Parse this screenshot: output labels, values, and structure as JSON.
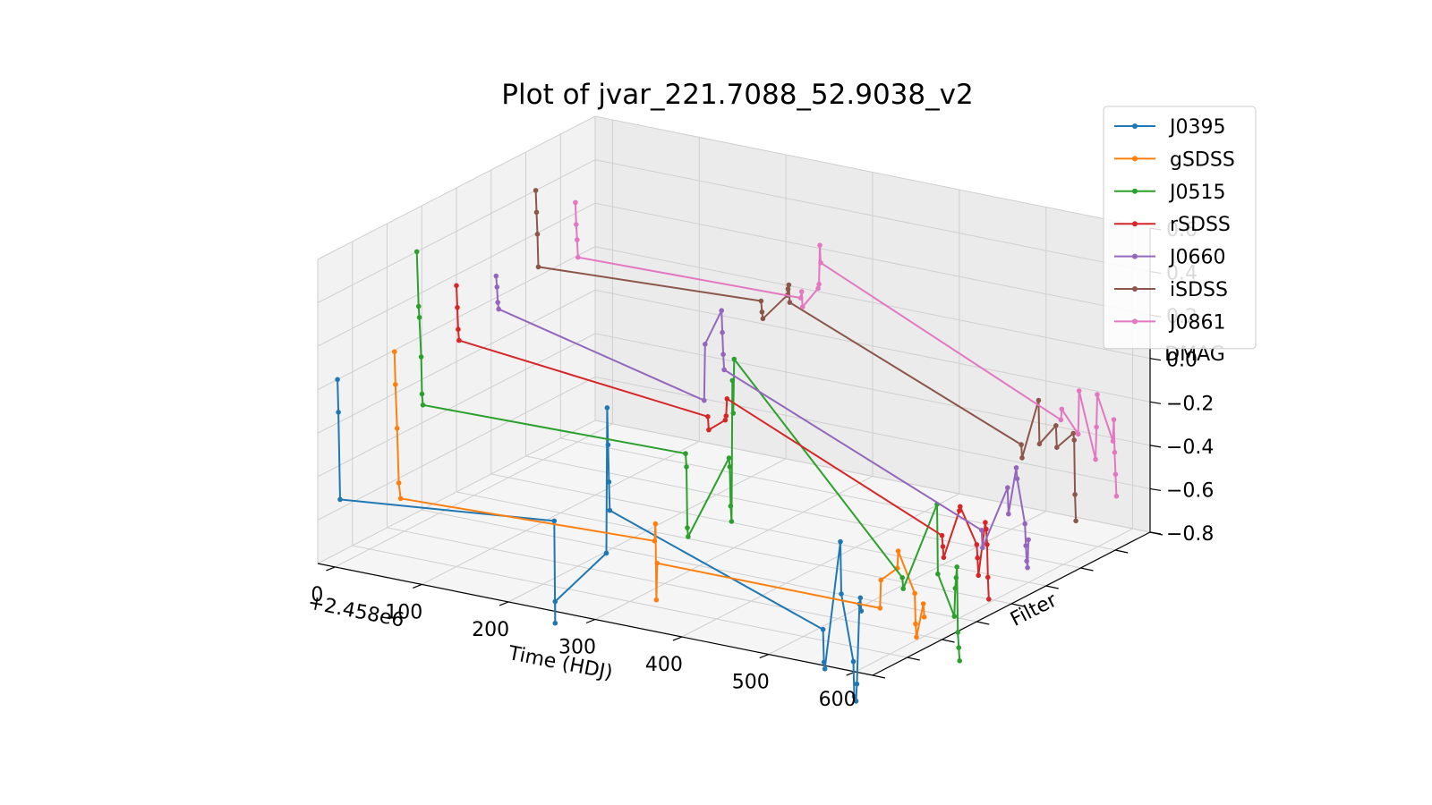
{
  "chart_data": {
    "type": "line",
    "projection": "3d",
    "title": "Plot of jvar_221.7088_52.9038_v2",
    "xlabel": "Time (HDJ)",
    "ylabel": "Filter",
    "zlabel": "DMAG",
    "x_offset_label": "+2.458e6",
    "x_ticks": [
      "0",
      "100",
      "200",
      "300",
      "400",
      "500",
      "600"
    ],
    "z_ticks": [
      "−0.8",
      "−0.6",
      "−0.4",
      "−0.2",
      "0.0",
      "0.2",
      "0.4",
      "0.6"
    ],
    "x_range": [
      -20,
      620
    ],
    "z_range": [
      -0.8,
      0.6
    ],
    "grid": true,
    "legend_position": "top-right",
    "series": [
      {
        "name": "J0395",
        "color": "#1f77b4",
        "filter_index": 0,
        "points": [
          [
            -20,
            0.0
          ],
          [
            -19,
            -0.15
          ],
          [
            -17,
            -0.55
          ],
          [
            230,
            -0.45
          ],
          [
            231,
            -0.92
          ],
          [
            231,
            -0.82
          ],
          [
            290,
            -0.55
          ],
          [
            291,
            0.12
          ],
          [
            292,
            -0.05
          ],
          [
            293,
            -0.22
          ],
          [
            294,
            -0.35
          ],
          [
            540,
            -0.7
          ],
          [
            541,
            -0.85
          ],
          [
            542,
            -0.88
          ],
          [
            560,
            -0.28
          ],
          [
            561,
            -0.52
          ],
          [
            575,
            -0.82
          ],
          [
            576,
            -0.98
          ],
          [
            578,
            -1.0
          ],
          [
            579,
            -0.92
          ],
          [
            582,
            -0.55
          ],
          [
            583,
            -0.52
          ],
          [
            584,
            -0.58
          ]
        ]
      },
      {
        "name": "gSDSS",
        "color": "#ff7f0e",
        "filter_index": 1,
        "points": [
          [
            0,
            0.05
          ],
          [
            1,
            -0.1
          ],
          [
            3,
            -0.3
          ],
          [
            5,
            -0.55
          ],
          [
            7,
            -0.62
          ],
          [
            300,
            -0.58
          ],
          [
            301,
            -0.5
          ],
          [
            302,
            -0.85
          ],
          [
            303,
            -0.68
          ],
          [
            560,
            -0.68
          ],
          [
            561,
            -0.55
          ],
          [
            580,
            -0.48
          ],
          [
            581,
            -0.4
          ],
          [
            600,
            -0.58
          ],
          [
            601,
            -0.72
          ],
          [
            602,
            -0.78
          ],
          [
            610,
            -0.62
          ],
          [
            611,
            -0.68
          ]
        ]
      },
      {
        "name": "J0515",
        "color": "#2ca02c",
        "filter_index": 2,
        "points": [
          [
            -20,
            0.4
          ],
          [
            -18,
            0.15
          ],
          [
            -17,
            0.1
          ],
          [
            -15,
            -0.08
          ],
          [
            -14,
            -0.25
          ],
          [
            -13,
            -0.3
          ],
          [
            290,
            -0.28
          ],
          [
            291,
            -0.34
          ],
          [
            292,
            -0.62
          ],
          [
            293,
            -0.66
          ],
          [
            340,
            -0.26
          ],
          [
            341,
            -0.3
          ],
          [
            342,
            -0.48
          ],
          [
            343,
            -0.55
          ],
          [
            344,
            0.1
          ],
          [
            345,
            -0.05
          ],
          [
            346,
            0.2
          ],
          [
            540,
            -0.65
          ],
          [
            541,
            -0.7
          ],
          [
            580,
            -0.28
          ],
          [
            581,
            -0.6
          ],
          [
            600,
            -0.78
          ],
          [
            601,
            -0.65
          ],
          [
            602,
            -0.6
          ],
          [
            603,
            -0.55
          ],
          [
            604,
            -0.85
          ],
          [
            605,
            -0.92
          ],
          [
            606,
            -0.98
          ]
        ]
      },
      {
        "name": "rSDSS",
        "color": "#d62728",
        "filter_index": 3,
        "points": [
          [
            -20,
            0.15
          ],
          [
            -19,
            0.05
          ],
          [
            -18,
            -0.05
          ],
          [
            -17,
            -0.1
          ],
          [
            270,
            -0.22
          ],
          [
            271,
            -0.28
          ],
          [
            290,
            -0.22
          ],
          [
            291,
            -0.2
          ],
          [
            292,
            -0.12
          ],
          [
            540,
            -0.55
          ],
          [
            541,
            -0.6
          ],
          [
            542,
            -0.65
          ],
          [
            560,
            -0.42
          ],
          [
            561,
            -0.4
          ],
          [
            580,
            -0.56
          ],
          [
            581,
            -0.62
          ],
          [
            582,
            -0.7
          ],
          [
            590,
            -0.45
          ],
          [
            591,
            -0.48
          ],
          [
            592,
            -0.55
          ],
          [
            593,
            -0.7
          ],
          [
            594,
            -0.8
          ]
        ]
      },
      {
        "name": "J0660",
        "color": "#9467bd",
        "filter_index": 4,
        "points": [
          [
            -20,
            0.1
          ],
          [
            -19,
            0.05
          ],
          [
            -18,
            -0.02
          ],
          [
            -17,
            -0.05
          ],
          [
            220,
            -0.28
          ],
          [
            221,
            -0.02
          ],
          [
            240,
            0.15
          ],
          [
            241,
            0.05
          ],
          [
            242,
            -0.05
          ],
          [
            243,
            -0.12
          ],
          [
            540,
            -0.62
          ],
          [
            541,
            -0.7
          ],
          [
            570,
            -0.4
          ],
          [
            571,
            -0.52
          ],
          [
            580,
            -0.3
          ],
          [
            581,
            -0.35
          ],
          [
            590,
            -0.55
          ],
          [
            591,
            -0.65
          ],
          [
            592,
            -0.72
          ],
          [
            593,
            -0.75
          ],
          [
            594,
            -0.62
          ]
        ]
      },
      {
        "name": "iSDSS",
        "color": "#8c564b",
        "filter_index": 5,
        "points": [
          [
            -20,
            0.4
          ],
          [
            -19,
            0.3
          ],
          [
            -18,
            0.2
          ],
          [
            -17,
            0.05
          ],
          [
            240,
            0.1
          ],
          [
            241,
            0.05
          ],
          [
            242,
            0.02
          ],
          [
            270,
            0.15
          ],
          [
            271,
            0.18
          ],
          [
            272,
            0.2
          ],
          [
            273,
            0.12
          ],
          [
            540,
            -0.32
          ],
          [
            541,
            -0.38
          ],
          [
            560,
            -0.1
          ],
          [
            561,
            -0.3
          ],
          [
            580,
            -0.2
          ],
          [
            581,
            -0.3
          ],
          [
            600,
            -0.22
          ],
          [
            601,
            -0.25
          ],
          [
            602,
            -0.5
          ],
          [
            603,
            -0.62
          ]
        ]
      },
      {
        "name": "J0861",
        "color": "#e377c2",
        "filter_index": 6,
        "points": [
          [
            -20,
            0.25
          ],
          [
            -19,
            0.15
          ],
          [
            -18,
            0.08
          ],
          [
            -17,
            0.0
          ],
          [
            240,
            0.02
          ],
          [
            241,
            0.05
          ],
          [
            242,
            -0.02
          ],
          [
            260,
            0.08
          ],
          [
            261,
            0.1
          ],
          [
            262,
            0.28
          ],
          [
            263,
            0.2
          ],
          [
            540,
            -0.3
          ],
          [
            541,
            -0.25
          ],
          [
            560,
            -0.35
          ],
          [
            561,
            -0.15
          ],
          [
            580,
            -0.45
          ],
          [
            581,
            -0.3
          ],
          [
            582,
            -0.15
          ],
          [
            600,
            -0.35
          ],
          [
            601,
            -0.25
          ],
          [
            602,
            -0.4
          ],
          [
            603,
            -0.5
          ],
          [
            604,
            -0.6
          ]
        ]
      }
    ]
  }
}
